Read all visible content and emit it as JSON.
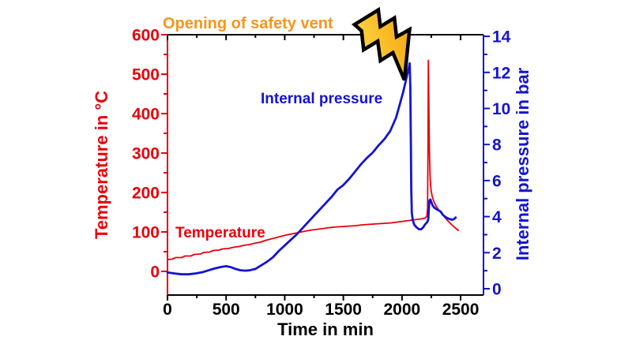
{
  "figure": {
    "background": "#ffffff",
    "annotation": {
      "text": "Opening of safety vent",
      "color": "#f7941d"
    },
    "bolt_icon": {
      "name": "lightning-bolt",
      "fill_light": "#ffd94d",
      "fill_dark": "#f29d00",
      "outline": "#000000"
    }
  },
  "chart_data": {
    "type": "line",
    "title": "",
    "x_axis": {
      "label": "Time in min",
      "color": "#000000",
      "min": 0,
      "max": 2695,
      "tick_min": 0,
      "tick_max": 2500,
      "minor_step": 250,
      "major_step": 500,
      "major_ticks": [
        0,
        500,
        1000,
        1500,
        2000,
        2500
      ]
    },
    "left_axis": {
      "label": "Temperature in °C",
      "color": "#e8000b",
      "min": -60,
      "max": 600,
      "tick_min": 0,
      "tick_max": 600,
      "minor_step": 50,
      "major_step": 100,
      "major_ticks": [
        0,
        100,
        200,
        300,
        400,
        500,
        600
      ]
    },
    "right_axis": {
      "label": "Internal pressure in bar",
      "color": "#1414cf",
      "min": -0.35,
      "max": 14.09,
      "tick_min": 0,
      "tick_max": 14,
      "minor_step": 1,
      "major_step": 2,
      "major_ticks": [
        0,
        2,
        4,
        6,
        8,
        10,
        12,
        14
      ]
    },
    "legend_position": "inline-labels",
    "grid": false,
    "series": [
      {
        "name": "Temperature",
        "inline_label": "Temperature",
        "axis": "left",
        "color": "#e8000b",
        "unit": "°C",
        "points": [
          [
            0,
            30
          ],
          [
            40,
            31
          ],
          [
            70,
            35
          ],
          [
            120,
            35
          ],
          [
            150,
            39
          ],
          [
            200,
            39
          ],
          [
            230,
            43
          ],
          [
            280,
            44
          ],
          [
            310,
            48
          ],
          [
            360,
            49
          ],
          [
            390,
            53
          ],
          [
            440,
            54
          ],
          [
            470,
            57
          ],
          [
            520,
            58
          ],
          [
            560,
            61
          ],
          [
            610,
            63
          ],
          [
            650,
            66
          ],
          [
            700,
            68
          ],
          [
            740,
            71
          ],
          [
            790,
            74
          ],
          [
            830,
            78
          ],
          [
            880,
            82
          ],
          [
            920,
            85
          ],
          [
            970,
            89
          ],
          [
            1010,
            92
          ],
          [
            1060,
            95
          ],
          [
            1110,
            98
          ],
          [
            1160,
            101
          ],
          [
            1210,
            104
          ],
          [
            1260,
            106
          ],
          [
            1310,
            108
          ],
          [
            1360,
            110
          ],
          [
            1410,
            112
          ],
          [
            1460,
            113
          ],
          [
            1510,
            114
          ],
          [
            1560,
            115
          ],
          [
            1610,
            116
          ],
          [
            1660,
            118
          ],
          [
            1710,
            119
          ],
          [
            1760,
            120
          ],
          [
            1810,
            121
          ],
          [
            1860,
            122
          ],
          [
            1910,
            123
          ],
          [
            1960,
            125
          ],
          [
            2010,
            127
          ],
          [
            2060,
            129
          ],
          [
            2110,
            131
          ],
          [
            2160,
            133
          ],
          [
            2195,
            135
          ],
          [
            2212,
            139
          ],
          [
            2218,
            160
          ],
          [
            2222,
            320
          ],
          [
            2225,
            535
          ],
          [
            2229,
            430
          ],
          [
            2234,
            300
          ],
          [
            2240,
            235
          ],
          [
            2248,
            205
          ],
          [
            2258,
            190
          ],
          [
            2272,
            177
          ],
          [
            2290,
            166
          ],
          [
            2312,
            156
          ],
          [
            2338,
            147
          ],
          [
            2365,
            137
          ],
          [
            2395,
            127
          ],
          [
            2425,
            118
          ],
          [
            2455,
            110
          ],
          [
            2480,
            104
          ]
        ]
      },
      {
        "name": "Internal pressure",
        "inline_label": "Internal pressure",
        "axis": "right",
        "color": "#1414cf",
        "unit": "bar",
        "points": [
          [
            0,
            0.9
          ],
          [
            60,
            0.85
          ],
          [
            120,
            0.8
          ],
          [
            180,
            0.8
          ],
          [
            240,
            0.85
          ],
          [
            300,
            0.92
          ],
          [
            350,
            1.02
          ],
          [
            400,
            1.12
          ],
          [
            450,
            1.2
          ],
          [
            500,
            1.25
          ],
          [
            540,
            1.2
          ],
          [
            580,
            1.1
          ],
          [
            620,
            1.03
          ],
          [
            660,
            1.0
          ],
          [
            700,
            1.02
          ],
          [
            750,
            1.1
          ],
          [
            800,
            1.3
          ],
          [
            850,
            1.5
          ],
          [
            900,
            1.75
          ],
          [
            950,
            2.1
          ],
          [
            1000,
            2.4
          ],
          [
            1050,
            2.7
          ],
          [
            1100,
            3.0
          ],
          [
            1150,
            3.35
          ],
          [
            1200,
            3.7
          ],
          [
            1250,
            4.05
          ],
          [
            1300,
            4.4
          ],
          [
            1350,
            4.75
          ],
          [
            1400,
            5.1
          ],
          [
            1450,
            5.5
          ],
          [
            1500,
            5.75
          ],
          [
            1550,
            6.1
          ],
          [
            1600,
            6.5
          ],
          [
            1650,
            6.9
          ],
          [
            1700,
            7.25
          ],
          [
            1750,
            7.55
          ],
          [
            1800,
            7.95
          ],
          [
            1850,
            8.3
          ],
          [
            1900,
            8.75
          ],
          [
            1950,
            9.5
          ],
          [
            1980,
            10.2
          ],
          [
            2010,
            10.9
          ],
          [
            2035,
            11.6
          ],
          [
            2055,
            12.15
          ],
          [
            2066,
            12.5
          ],
          [
            2071,
            11.2
          ],
          [
            2075,
            8.5
          ],
          [
            2079,
            5.5
          ],
          [
            2084,
            4.2
          ],
          [
            2092,
            3.8
          ],
          [
            2105,
            3.55
          ],
          [
            2125,
            3.4
          ],
          [
            2145,
            3.3
          ],
          [
            2165,
            3.3
          ],
          [
            2180,
            3.4
          ],
          [
            2195,
            3.55
          ],
          [
            2208,
            3.65
          ],
          [
            2218,
            3.72
          ],
          [
            2224,
            3.85
          ],
          [
            2228,
            4.35
          ],
          [
            2234,
            4.9
          ],
          [
            2243,
            4.95
          ],
          [
            2253,
            4.75
          ],
          [
            2263,
            4.6
          ],
          [
            2276,
            4.5
          ],
          [
            2292,
            4.42
          ],
          [
            2312,
            4.35
          ],
          [
            2330,
            4.28
          ],
          [
            2348,
            4.1
          ],
          [
            2366,
            4.0
          ],
          [
            2386,
            3.92
          ],
          [
            2406,
            3.87
          ],
          [
            2426,
            3.83
          ],
          [
            2444,
            3.86
          ],
          [
            2458,
            3.95
          ]
        ]
      }
    ],
    "annotations": [
      {
        "text": "Opening of safety vent",
        "refers_to": "pressure peak at ~2066 min, 12.5 bar"
      }
    ]
  }
}
